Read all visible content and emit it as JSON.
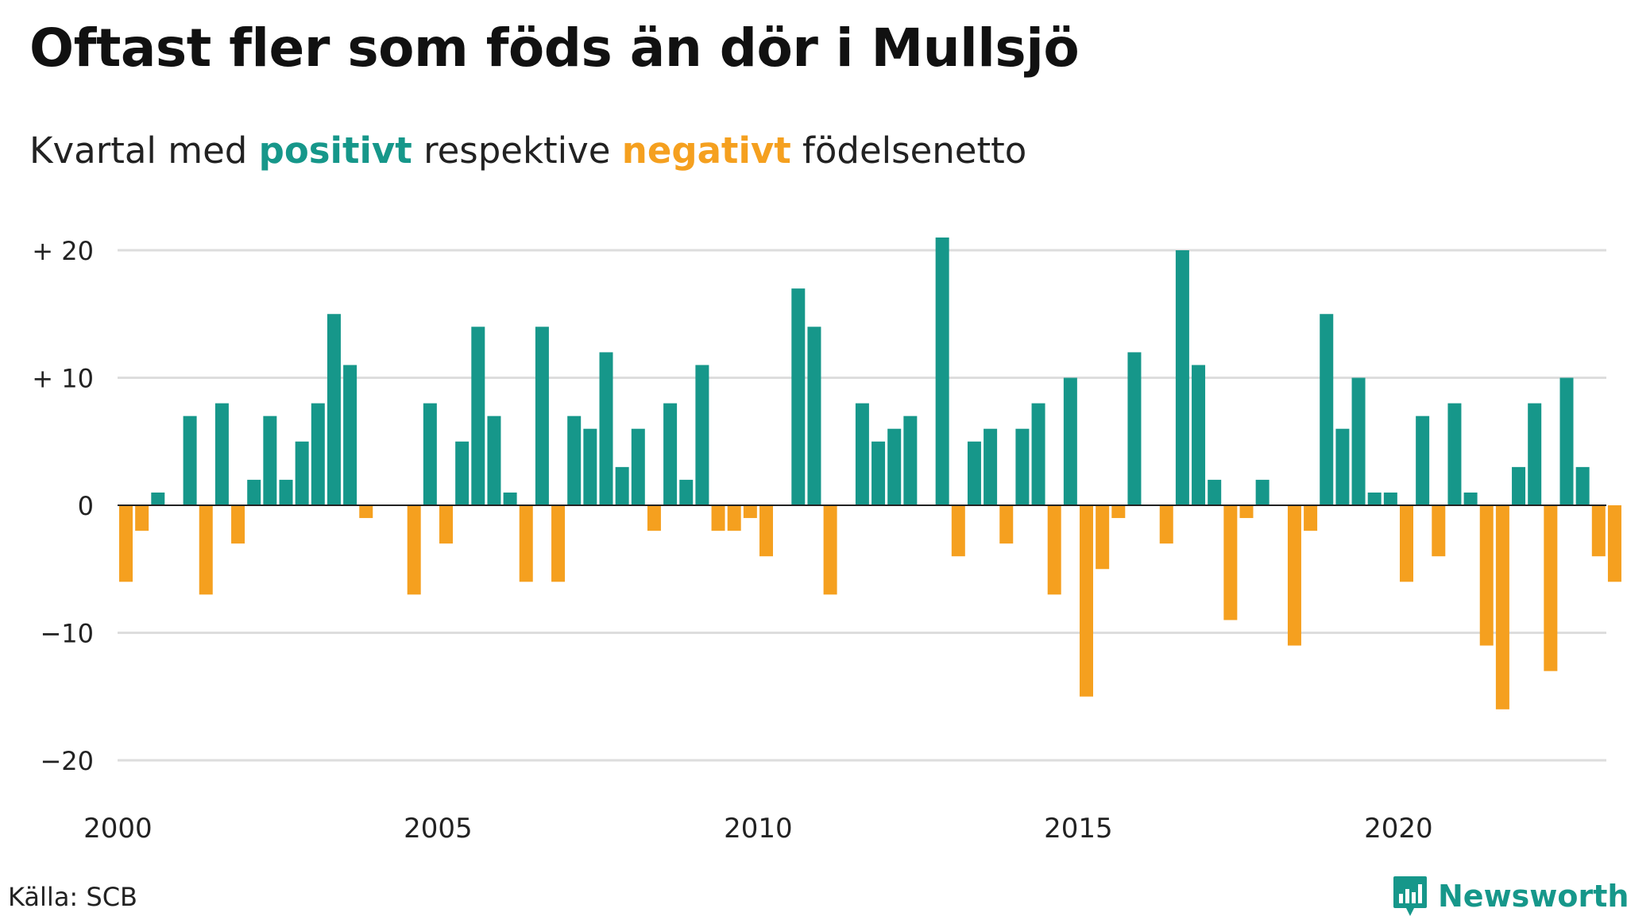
{
  "title": "Oftast fler som föds än dör i Mullsjö",
  "subtitle": {
    "prefix": "Kvartal med ",
    "positive": "positivt",
    "middle": " respektive ",
    "negative": "negativt",
    "suffix": " födelsenetto"
  },
  "source": "Källa: SCB",
  "brand": {
    "name": "Newsworthy",
    "icon": "newsworthy-logo-icon"
  },
  "colors": {
    "positive": "#16978a",
    "negative": "#f5a01f",
    "grid": "#dddddd",
    "zero_line": "#222222"
  },
  "chart_data": {
    "type": "bar",
    "title": "Oftast fler som föds än dör i Mullsjö",
    "subtitle": "Kvartal med positivt respektive negativt födelsenetto",
    "x_unit": "quarter",
    "x_start": "2000 Q1",
    "values": [
      -6,
      -2,
      1,
      0,
      7,
      -7,
      8,
      -3,
      2,
      7,
      2,
      5,
      8,
      15,
      11,
      -1,
      0,
      0,
      -7,
      8,
      -3,
      5,
      14,
      7,
      1,
      -6,
      14,
      -6,
      7,
      6,
      12,
      3,
      6,
      -2,
      8,
      2,
      11,
      -2,
      -2,
      -1,
      -4,
      0,
      17,
      14,
      -7,
      0,
      8,
      5,
      6,
      7,
      0,
      21,
      -4,
      5,
      6,
      -3,
      6,
      8,
      -7,
      10,
      -15,
      -5,
      -1,
      12,
      0,
      -3,
      20,
      11,
      2,
      -9,
      -1,
      2,
      0,
      -11,
      -2,
      15,
      6,
      10,
      1,
      1,
      -6,
      7,
      -4,
      8,
      1,
      -11,
      -16,
      3,
      8,
      -13,
      10,
      3,
      -4,
      -6
    ],
    "x_ticks": [
      "2000",
      "2005",
      "2010",
      "2015",
      "2020"
    ],
    "y_ticks": [
      {
        "value": 20,
        "label": "+ 20"
      },
      {
        "value": 10,
        "label": "+ 10"
      },
      {
        "value": 0,
        "label": "0"
      },
      {
        "value": -10,
        "label": "−10"
      },
      {
        "value": -20,
        "label": "−20"
      }
    ],
    "ylim": [
      -20,
      21
    ],
    "grid": true,
    "legend": "none"
  }
}
